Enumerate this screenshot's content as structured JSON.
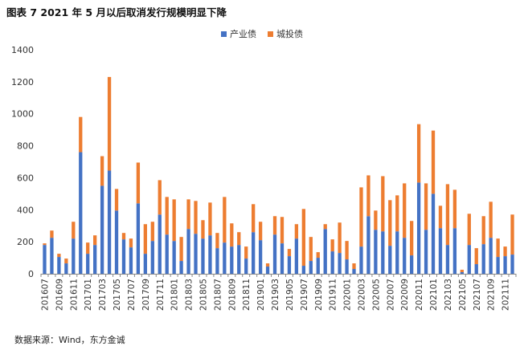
{
  "chart_data": {
    "type": "bar",
    "stacked": true,
    "title": "图表 7  2021 年 5 月以后取消发行规模明显下降",
    "xlabel": "",
    "ylabel": "",
    "ylim": [
      0,
      1400
    ],
    "yticks": [
      0,
      200,
      400,
      600,
      800,
      1000,
      1200,
      1400
    ],
    "grid": false,
    "legend_position": "top",
    "categories": [
      "201607",
      "201608",
      "201609",
      "201610",
      "201611",
      "201612",
      "201701",
      "201702",
      "201703",
      "201704",
      "201705",
      "201706",
      "201707",
      "201708",
      "201709",
      "201710",
      "201711",
      "201712",
      "201801",
      "201802",
      "201803",
      "201804",
      "201805",
      "201806",
      "201807",
      "201808",
      "201809",
      "201810",
      "201811",
      "201812",
      "201901",
      "201902",
      "201903",
      "201904",
      "201905",
      "201906",
      "201907",
      "201908",
      "201909",
      "201910",
      "201911",
      "201912",
      "202001",
      "202002",
      "202003",
      "202004",
      "202005",
      "202006",
      "202007",
      "202008",
      "202009",
      "202010",
      "202011",
      "202012",
      "202101",
      "202102",
      "202103",
      "202104",
      "202105",
      "202106",
      "202107",
      "202108",
      "202109",
      "202110",
      "202111",
      "202112"
    ],
    "x_tick_labels": [
      "201607",
      "201609",
      "201611",
      "201701",
      "201703",
      "201705",
      "201707",
      "201709",
      "201711",
      "201801",
      "201803",
      "201805",
      "201807",
      "201809",
      "201811",
      "201901",
      "201903",
      "201905",
      "201907",
      "201909",
      "201911",
      "202001",
      "202003",
      "202005",
      "202007",
      "202009",
      "202011",
      "202101",
      "202103",
      "202105",
      "202107",
      "202109",
      "202111"
    ],
    "series": [
      {
        "name": "产业债",
        "color": "#4472C4",
        "values": [
          180,
          225,
          105,
          65,
          220,
          760,
          125,
          180,
          550,
          645,
          395,
          215,
          165,
          440,
          125,
          205,
          370,
          245,
          205,
          80,
          280,
          250,
          220,
          240,
          160,
          195,
          170,
          180,
          95,
          260,
          210,
          45,
          245,
          190,
          110,
          220,
          50,
          80,
          100,
          280,
          140,
          130,
          90,
          30,
          170,
          360,
          275,
          265,
          175,
          265,
          225,
          115,
          570,
          275,
          500,
          285,
          180,
          285,
          10,
          180,
          60,
          185,
          225,
          105,
          110,
          120
        ]
      },
      {
        "name": "城投债",
        "color": "#ED7D31",
        "values": [
          10,
          45,
          20,
          30,
          105,
          220,
          70,
          60,
          185,
          585,
          135,
          40,
          55,
          255,
          185,
          120,
          215,
          235,
          260,
          150,
          185,
          205,
          115,
          205,
          95,
          285,
          145,
          80,
          75,
          175,
          115,
          20,
          115,
          165,
          45,
          90,
          355,
          150,
          35,
          30,
          75,
          190,
          115,
          35,
          370,
          255,
          120,
          345,
          285,
          225,
          340,
          215,
          365,
          290,
          395,
          140,
          380,
          240,
          15,
          195,
          100,
          175,
          225,
          115,
          60,
          250
        ]
      }
    ],
    "source_note": "数据来源：Wind，东方金诚"
  }
}
